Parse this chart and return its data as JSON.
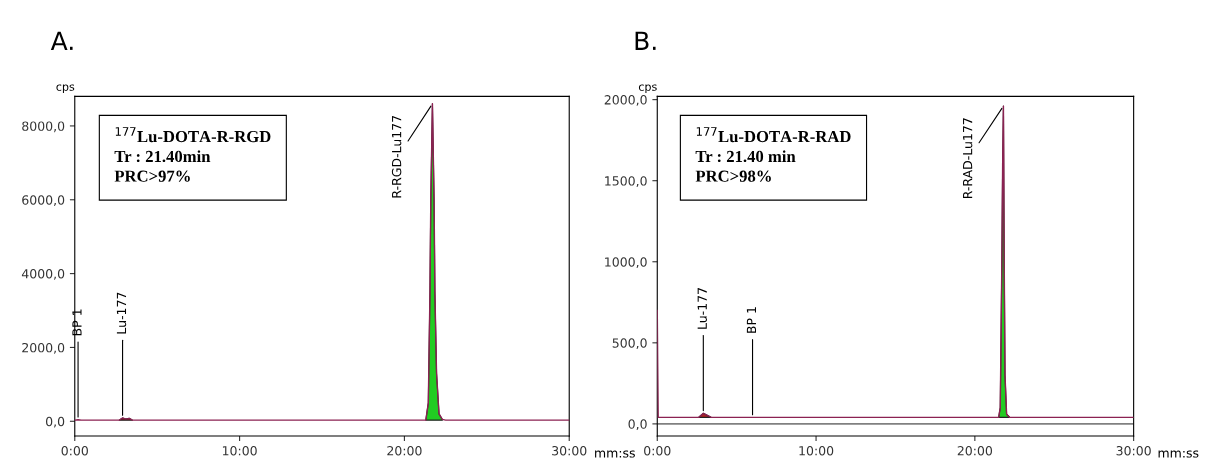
{
  "chart_data": [
    {
      "type": "line",
      "title": "A.",
      "xlabel": "mm:ss",
      "ylabel": "cps",
      "xlim": [
        0,
        30
      ],
      "xticks": [
        {
          "value": 0,
          "label": "0:00"
        },
        {
          "value": 10,
          "label": "10:00"
        },
        {
          "value": 20,
          "label": "20:00"
        },
        {
          "value": 30,
          "label": "30:00"
        }
      ],
      "ylim": [
        -400,
        8800
      ],
      "yticks": [
        {
          "value": 0,
          "label": "0,0"
        },
        {
          "value": 2000,
          "label": "2000,0"
        },
        {
          "value": 4000,
          "label": "4000,0"
        },
        {
          "value": 6000,
          "label": "6000,0"
        },
        {
          "value": 8000,
          "label": "8000,0"
        }
      ],
      "series": [
        {
          "color": "#8b2252",
          "x": [
            0,
            0.2,
            0.4,
            2.7,
            2.9,
            3.1,
            3.3,
            3.5,
            10,
            20,
            21.3,
            21.45,
            21.55,
            21.6,
            21.7,
            21.8,
            21.85,
            21.95,
            22.1,
            22.3,
            22.5,
            30
          ],
          "values": [
            30,
            40,
            30,
            30,
            90,
            60,
            80,
            30,
            30,
            30,
            30,
            500,
            3500,
            6000,
            8600,
            6000,
            3500,
            1300,
            200,
            50,
            30,
            30
          ]
        },
        {
          "type": "area",
          "color": "#22cc22",
          "x": [
            21.3,
            21.45,
            21.55,
            21.6,
            21.7,
            21.8,
            21.85,
            21.95,
            22.1,
            22.3
          ],
          "values": [
            30,
            500,
            3500,
            6000,
            8600,
            6000,
            3500,
            1300,
            200,
            50
          ]
        },
        {
          "type": "area",
          "color": "#b22222",
          "x": [
            2.7,
            2.9,
            3.1,
            3.3,
            3.5
          ],
          "values": [
            30,
            90,
            60,
            80,
            30
          ]
        }
      ],
      "annotations": [
        "$^{177}$Lu-DOTA-R-RGD\nTr : 21.40min\nPRC>97%",
        {
          "text": "BP 1",
          "x": 0.2,
          "y": 40
        },
        {
          "text": "Lu-177",
          "x": 2.9,
          "y": 90
        },
        {
          "text": "R-RGD-Lu177",
          "x": 21.7,
          "y": 8600
        }
      ]
    },
    {
      "type": "line",
      "title": "B.",
      "xlabel": "mm:ss",
      "ylabel": "cps",
      "xlim": [
        0,
        30
      ],
      "xticks": [
        {
          "value": 0,
          "label": "0:00"
        },
        {
          "value": 10,
          "label": "10:00"
        },
        {
          "value": 20,
          "label": "20:00"
        },
        {
          "value": 30,
          "label": "30:00"
        }
      ],
      "ylim": [
        -75,
        2020
      ],
      "yticks": [
        {
          "value": 0,
          "label": "0,0"
        },
        {
          "value": 500,
          "label": "500,0"
        },
        {
          "value": 1000,
          "label": "1000,0"
        },
        {
          "value": 1500,
          "label": "1500,0"
        },
        {
          "value": 2000,
          "label": "2000,0"
        }
      ],
      "ref_lines": [
        {
          "axis": "y",
          "value": 0,
          "color": "#808080"
        }
      ],
      "series": [
        {
          "color": "#8b2252",
          "x": [
            0,
            0.03,
            0.06,
            0.1,
            2.6,
            2.9,
            3.1,
            3.4,
            6,
            10,
            20,
            21.5,
            21.6,
            21.7,
            21.75,
            21.8,
            21.85,
            21.9,
            22.0,
            22.2,
            30
          ],
          "values": [
            700,
            350,
            40,
            40,
            40,
            65,
            55,
            40,
            40,
            40,
            40,
            40,
            100,
            1000,
            1600,
            1960,
            1000,
            300,
            60,
            40,
            40
          ]
        },
        {
          "type": "area",
          "color": "#22cc22",
          "x": [
            21.5,
            21.6,
            21.7,
            21.75,
            21.8,
            21.85,
            21.9,
            22.0,
            22.2
          ],
          "values": [
            40,
            100,
            1000,
            1600,
            1960,
            1000,
            300,
            60,
            40
          ]
        },
        {
          "type": "area",
          "color": "#b22222",
          "x": [
            2.6,
            2.9,
            3.1,
            3.4
          ],
          "values": [
            40,
            65,
            55,
            40
          ]
        }
      ],
      "annotations": [
        "$^{177}$Lu-DOTA-R-RAD\nTr : 21.40 min\nPRC>98%",
        {
          "text": "Lu-177",
          "x": 2.9,
          "y": 65
        },
        {
          "text": "BP 1",
          "x": 6,
          "y": 40
        },
        {
          "text": "R-RAD-Lu177",
          "x": 21.8,
          "y": 1960
        }
      ]
    }
  ]
}
